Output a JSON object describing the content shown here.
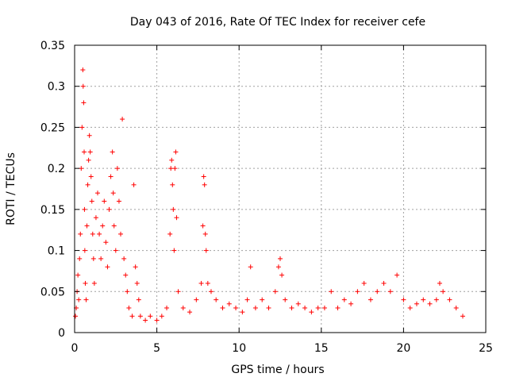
{
  "chart_data": {
    "type": "scatter",
    "title": "Day 043 of 2016, Rate Of TEC Index for receiver cefe",
    "xlabel": "GPS time / hours",
    "ylabel": "ROTI / TECUs",
    "xlim": [
      0,
      25
    ],
    "ylim": [
      0,
      0.35
    ],
    "grid": true,
    "marker": "+",
    "series_color": "#ff0000",
    "x_ticks": [
      0,
      5,
      10,
      15,
      20,
      25
    ],
    "y_ticks": [
      0,
      0.05,
      0.1,
      0.15,
      0.2,
      0.25,
      0.3,
      0.35
    ],
    "x_tick_labels": [
      "0",
      "5",
      "10",
      "15",
      "20",
      "25"
    ],
    "y_tick_labels": [
      "0",
      "0.05",
      "0.1",
      "0.15",
      "0.2",
      "0.25",
      "0.3",
      "0.35"
    ],
    "series": [
      {
        "name": "ROTI",
        "points": [
          [
            0.05,
            0.02
          ],
          [
            0.1,
            0.03
          ],
          [
            0.15,
            0.05
          ],
          [
            0.2,
            0.07
          ],
          [
            0.25,
            0.04
          ],
          [
            0.3,
            0.09
          ],
          [
            0.35,
            0.12
          ],
          [
            0.4,
            0.2
          ],
          [
            0.45,
            0.25
          ],
          [
            0.5,
            0.32
          ],
          [
            0.52,
            0.3
          ],
          [
            0.55,
            0.28
          ],
          [
            0.58,
            0.22
          ],
          [
            0.6,
            0.15
          ],
          [
            0.62,
            0.1
          ],
          [
            0.65,
            0.06
          ],
          [
            0.7,
            0.04
          ],
          [
            0.75,
            0.13
          ],
          [
            0.8,
            0.18
          ],
          [
            0.85,
            0.21
          ],
          [
            0.9,
            0.24
          ],
          [
            0.95,
            0.22
          ],
          [
            1.0,
            0.19
          ],
          [
            1.05,
            0.16
          ],
          [
            1.1,
            0.12
          ],
          [
            1.15,
            0.09
          ],
          [
            1.2,
            0.06
          ],
          [
            1.3,
            0.14
          ],
          [
            1.4,
            0.17
          ],
          [
            1.5,
            0.12
          ],
          [
            1.6,
            0.09
          ],
          [
            1.7,
            0.13
          ],
          [
            1.8,
            0.16
          ],
          [
            1.9,
            0.11
          ],
          [
            2.0,
            0.08
          ],
          [
            2.1,
            0.15
          ],
          [
            2.2,
            0.19
          ],
          [
            2.3,
            0.22
          ],
          [
            2.35,
            0.17
          ],
          [
            2.4,
            0.13
          ],
          [
            2.5,
            0.1
          ],
          [
            2.6,
            0.2
          ],
          [
            2.7,
            0.16
          ],
          [
            2.8,
            0.12
          ],
          [
            2.9,
            0.26
          ],
          [
            3.0,
            0.09
          ],
          [
            3.1,
            0.07
          ],
          [
            3.2,
            0.05
          ],
          [
            3.3,
            0.03
          ],
          [
            3.5,
            0.02
          ],
          [
            3.6,
            0.18
          ],
          [
            3.7,
            0.08
          ],
          [
            3.8,
            0.06
          ],
          [
            3.9,
            0.04
          ],
          [
            4.0,
            0.02
          ],
          [
            4.3,
            0.015
          ],
          [
            4.6,
            0.02
          ],
          [
            5.0,
            0.015
          ],
          [
            5.3,
            0.02
          ],
          [
            5.6,
            0.03
          ],
          [
            5.8,
            0.12
          ],
          [
            5.85,
            0.2
          ],
          [
            5.9,
            0.21
          ],
          [
            5.95,
            0.18
          ],
          [
            6.0,
            0.15
          ],
          [
            6.05,
            0.1
          ],
          [
            6.1,
            0.2
          ],
          [
            6.15,
            0.22
          ],
          [
            6.2,
            0.14
          ],
          [
            6.3,
            0.05
          ],
          [
            6.6,
            0.03
          ],
          [
            7.0,
            0.025
          ],
          [
            7.4,
            0.04
          ],
          [
            7.7,
            0.06
          ],
          [
            7.8,
            0.13
          ],
          [
            7.85,
            0.19
          ],
          [
            7.9,
            0.18
          ],
          [
            7.95,
            0.12
          ],
          [
            8.0,
            0.1
          ],
          [
            8.1,
            0.06
          ],
          [
            8.3,
            0.05
          ],
          [
            8.6,
            0.04
          ],
          [
            9.0,
            0.03
          ],
          [
            9.4,
            0.035
          ],
          [
            9.8,
            0.03
          ],
          [
            10.2,
            0.025
          ],
          [
            10.5,
            0.04
          ],
          [
            10.7,
            0.08
          ],
          [
            11.0,
            0.03
          ],
          [
            11.4,
            0.04
          ],
          [
            11.8,
            0.03
          ],
          [
            12.2,
            0.05
          ],
          [
            12.4,
            0.08
          ],
          [
            12.5,
            0.09
          ],
          [
            12.6,
            0.07
          ],
          [
            12.8,
            0.04
          ],
          [
            13.2,
            0.03
          ],
          [
            13.6,
            0.035
          ],
          [
            14.0,
            0.03
          ],
          [
            14.4,
            0.025
          ],
          [
            14.8,
            0.03
          ],
          [
            15.2,
            0.03
          ],
          [
            15.6,
            0.05
          ],
          [
            16.0,
            0.03
          ],
          [
            16.4,
            0.04
          ],
          [
            16.8,
            0.035
          ],
          [
            17.2,
            0.05
          ],
          [
            17.6,
            0.06
          ],
          [
            18.0,
            0.04
          ],
          [
            18.4,
            0.05
          ],
          [
            18.8,
            0.06
          ],
          [
            19.2,
            0.05
          ],
          [
            19.6,
            0.07
          ],
          [
            20.0,
            0.04
          ],
          [
            20.4,
            0.03
          ],
          [
            20.8,
            0.035
          ],
          [
            21.2,
            0.04
          ],
          [
            21.6,
            0.035
          ],
          [
            22.0,
            0.04
          ],
          [
            22.2,
            0.06
          ],
          [
            22.4,
            0.05
          ],
          [
            22.8,
            0.04
          ],
          [
            23.2,
            0.03
          ],
          [
            23.6,
            0.02
          ]
        ]
      }
    ]
  }
}
